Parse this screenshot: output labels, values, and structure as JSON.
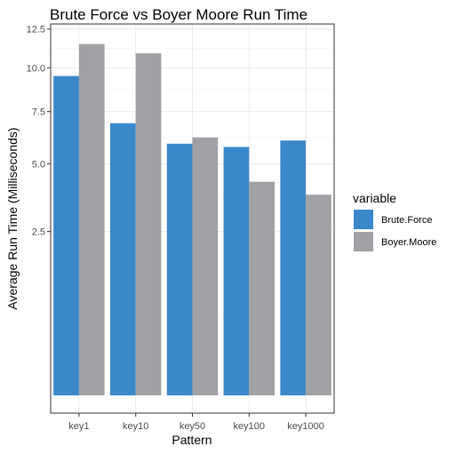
{
  "chart_data": {
    "type": "bar",
    "title": "Brute Force vs Boyer Moore Run Time",
    "xlabel": "Pattern",
    "ylabel": "Average Run Time (Milliseconds)",
    "categories": [
      "key1",
      "key10",
      "key50",
      "key100",
      "key1000"
    ],
    "series": [
      {
        "name": "Brute.Force",
        "color": "#3a87c9",
        "values": [
          9.5,
          6.9,
          5.9,
          5.75,
          6.05
        ]
      },
      {
        "name": "Boyer.Moore",
        "color": "#a0a1a5",
        "values": [
          11.5,
          10.9,
          6.2,
          4.25,
          3.75
        ]
      }
    ],
    "y_scale": "sqrt",
    "ylim": [
      0,
      12.85
    ],
    "yticks": [
      2.5,
      5.0,
      7.5,
      10.0,
      12.5
    ],
    "ytick_labels": [
      "2.5",
      "5.0",
      "7.5",
      "10.0",
      "12.5"
    ],
    "grid": true,
    "legend": {
      "title": "variable",
      "position": "right"
    },
    "theme": {
      "background": "#ffffff",
      "grid_color": "#ebebeb",
      "panel_border": "#333333"
    }
  }
}
